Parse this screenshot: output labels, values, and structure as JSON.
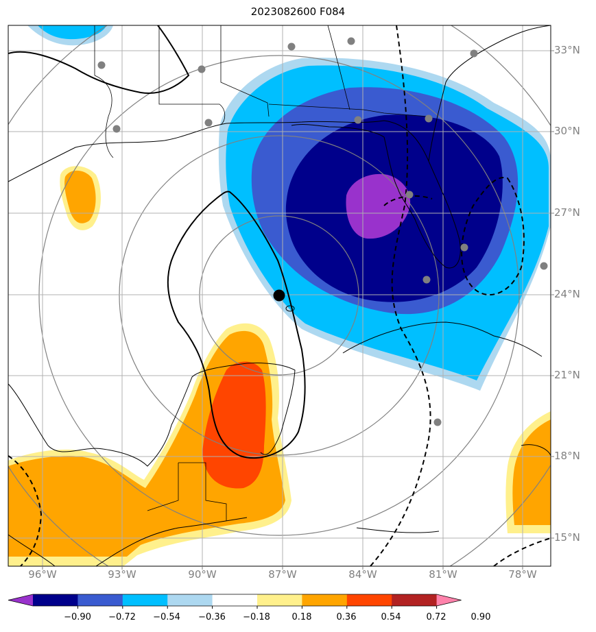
{
  "title": "2023082600 F084",
  "lat_labels": [
    "33°N",
    "30°N",
    "27°N",
    "24°N",
    "21°N",
    "18°N",
    "15°N"
  ],
  "lon_labels": [
    "96°W",
    "93°W",
    "90°W",
    "87°W",
    "84°W",
    "81°W",
    "78°W"
  ],
  "colorbar": {
    "labels": [
      "−0.90",
      "−0.72",
      "−0.54",
      "−0.36",
      "−0.18",
      "0.18",
      "0.36",
      "0.54",
      "0.72",
      "0.90"
    ],
    "colors": [
      "#9932cc",
      "#00008b",
      "#3a5bd0",
      "#00bfff",
      "#add8f0",
      "#ffffff",
      "#fff08c",
      "#ffa500",
      "#ff4500",
      "#b22222",
      "#ff82ab"
    ]
  },
  "map": {
    "storm_center_marker": "black-dot",
    "station_marker": "gray-dot"
  }
}
